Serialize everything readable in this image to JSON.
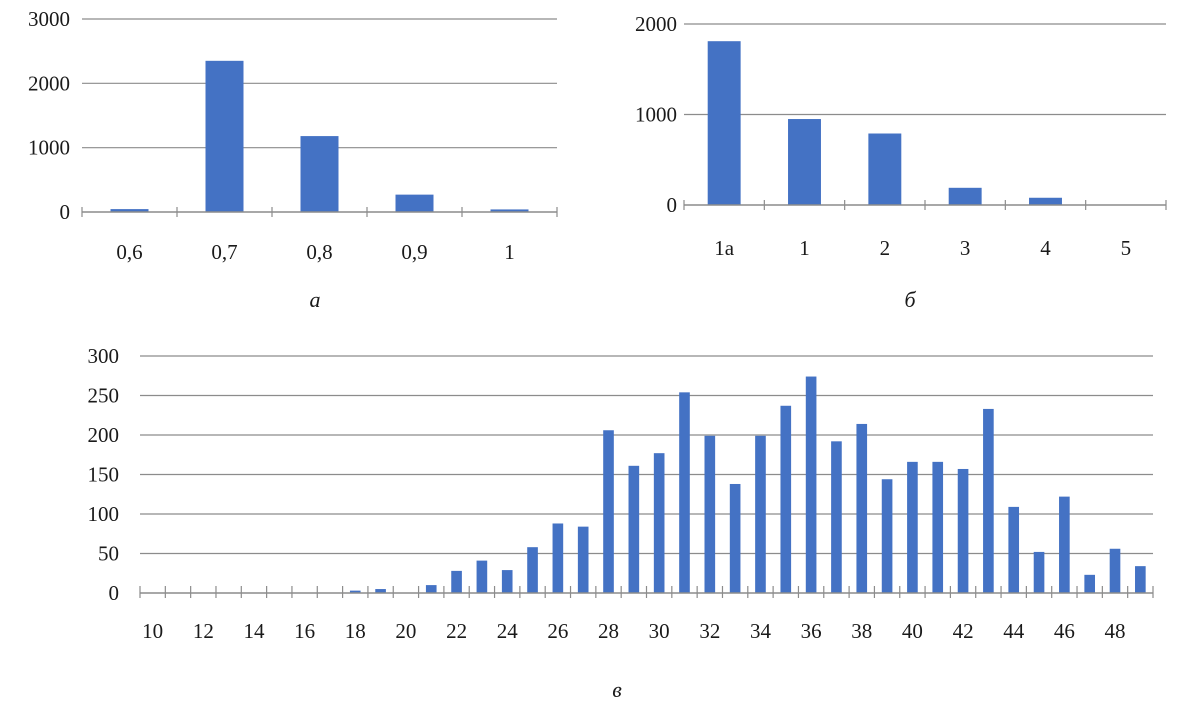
{
  "colors": {
    "bar": "#4472C4",
    "grid": "#8c8c8c",
    "axis": "#8c8c8c",
    "text": "#1a1a1a"
  },
  "chart_data": [
    {
      "id": "a",
      "type": "bar",
      "caption": "а",
      "categories": [
        "0,6",
        "0,7",
        "0,8",
        "0,9",
        "1"
      ],
      "values": [
        45,
        2350,
        1180,
        270,
        40
      ],
      "ylim": [
        0,
        3000
      ],
      "yticks": [
        0,
        1000,
        2000,
        3000
      ],
      "grid": true,
      "legend": "none"
    },
    {
      "id": "b",
      "type": "bar",
      "caption": "б",
      "categories": [
        "1а",
        "1",
        "2",
        "3",
        "4",
        "5"
      ],
      "values": [
        1810,
        950,
        790,
        190,
        80,
        0
      ],
      "ylim": [
        0,
        2000
      ],
      "yticks": [
        0,
        1000,
        2000
      ],
      "grid": true,
      "legend": "none"
    },
    {
      "id": "c",
      "type": "bar",
      "caption": "в",
      "categories": [
        "10",
        "11",
        "12",
        "13",
        "14",
        "15",
        "16",
        "17",
        "18",
        "19",
        "20",
        "21",
        "22",
        "23",
        "24",
        "25",
        "26",
        "27",
        "28",
        "29",
        "30",
        "31",
        "32",
        "33",
        "34",
        "35",
        "36",
        "37",
        "38",
        "39",
        "40",
        "41",
        "42",
        "43",
        "44",
        "45",
        "46",
        "47",
        "48",
        "49"
      ],
      "category_labels": [
        "10",
        "",
        "12",
        "",
        "14",
        "",
        "16",
        "",
        "18",
        "",
        "20",
        "",
        "22",
        "",
        "24",
        "",
        "26",
        "",
        "28",
        "",
        "30",
        "",
        "32",
        "",
        "34",
        "",
        "36",
        "",
        "38",
        "",
        "40",
        "",
        "42",
        "",
        "44",
        "",
        "46",
        "",
        "48",
        ""
      ],
      "values": [
        0,
        0,
        0,
        0,
        0,
        0,
        0,
        0,
        3,
        5,
        0,
        10,
        28,
        41,
        29,
        58,
        88,
        84,
        206,
        161,
        177,
        254,
        199,
        138,
        199,
        237,
        274,
        192,
        214,
        144,
        166,
        166,
        157,
        233,
        109,
        52,
        122,
        23,
        56,
        34
      ],
      "ylim": [
        0,
        300
      ],
      "yticks": [
        0,
        50,
        100,
        150,
        200,
        250,
        300
      ],
      "grid": true,
      "legend": "none"
    }
  ]
}
